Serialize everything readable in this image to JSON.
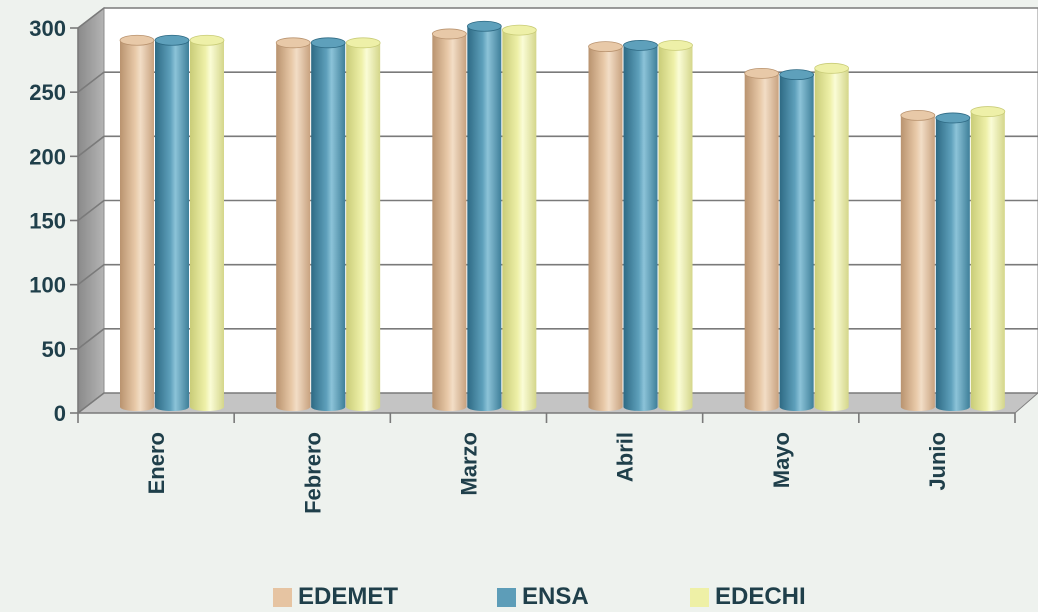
{
  "chart_data": {
    "type": "bar",
    "title": "",
    "xlabel": "",
    "ylabel": "",
    "categories": [
      "Enero",
      "Febrero",
      "Marzo",
      "Abril",
      "Mayo",
      "Junio"
    ],
    "series": [
      {
        "name": "EDEMET",
        "values": [
          288,
          286,
          293,
          283,
          262,
          229
        ],
        "color": "#e6c4a2"
      },
      {
        "name": "ENSA",
        "values": [
          288,
          286,
          299,
          284,
          261,
          227
        ],
        "color": "#5d9db8"
      },
      {
        "name": "EDECHI",
        "values": [
          288,
          286,
          296,
          284,
          266,
          232
        ],
        "color": "#eef0a6"
      }
    ],
    "ylim": [
      0,
      300
    ],
    "yticks": [
      "0",
      "50",
      "100",
      "150",
      "200",
      "250",
      "300"
    ],
    "grid": true,
    "legend_position": "bottom"
  }
}
